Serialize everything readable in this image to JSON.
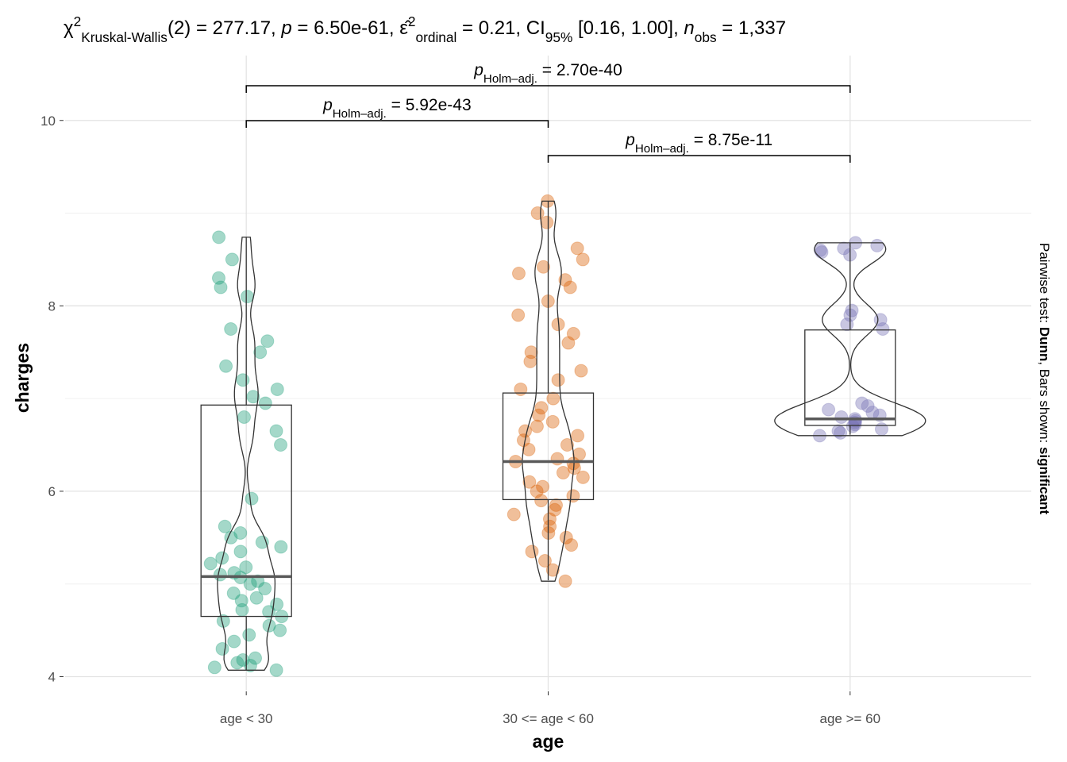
{
  "chart_data": {
    "type": "violin-box",
    "title_parts": [
      {
        "text": "χ"
      },
      {
        "text": "2",
        "style": "sup"
      },
      {
        "text": "Kruskal-Wallis",
        "style": "sub"
      },
      {
        "text": "(2) = 277.17, "
      },
      {
        "text": "p",
        "style": "italic"
      },
      {
        "text": " = 6.50e-61, "
      },
      {
        "text": "ε̂"
      },
      {
        "text": "2",
        "style": "sup"
      },
      {
        "text": "ordinal",
        "style": "sub"
      },
      {
        "text": " = 0.21, CI"
      },
      {
        "text": "95%",
        "style": "sub"
      },
      {
        "text": " [0.16, 1.00], "
      },
      {
        "text": "n",
        "style": "italic"
      },
      {
        "text": "obs",
        "style": "sub"
      },
      {
        "text": " = 1,337"
      }
    ],
    "caption_parts": [
      {
        "text": "Pairwise test: "
      },
      {
        "text": "Dunn",
        "style": "bold"
      },
      {
        "text": ", Bars shown: "
      },
      {
        "text": "significant",
        "style": "bold"
      }
    ],
    "x_label": "age",
    "y_label": "charges",
    "categories": [
      "age < 30",
      "30 <= age < 60",
      "age >= 60"
    ],
    "ylim": [
      3.85,
      10.7
    ],
    "yticks": [
      4,
      6,
      8,
      10
    ],
    "grid": true,
    "series": [
      {
        "name": "age < 30",
        "color": "#1B9E77",
        "values": [
          4.07,
          4.1,
          4.12,
          4.15,
          4.18,
          4.2,
          4.3,
          4.38,
          4.45,
          4.5,
          4.55,
          4.6,
          4.65,
          4.7,
          4.72,
          4.78,
          4.82,
          4.85,
          4.9,
          4.95,
          5.0,
          5.03,
          5.07,
          5.1,
          5.12,
          5.18,
          5.22,
          5.28,
          5.35,
          5.4,
          5.45,
          5.5,
          5.55,
          5.62,
          5.92,
          6.5,
          6.65,
          6.8,
          6.95,
          7.02,
          7.1,
          7.2,
          7.35,
          7.5,
          7.62,
          7.75,
          8.1,
          8.2,
          8.3,
          8.5,
          8.74
        ],
        "box": {
          "lower": 4.07,
          "q1": 4.65,
          "median": 5.08,
          "q3": 6.93,
          "upper": 8.74
        }
      },
      {
        "name": "30 <= age < 60",
        "color": "#D95F02",
        "values": [
          5.03,
          5.15,
          5.25,
          5.35,
          5.42,
          5.5,
          5.55,
          5.62,
          5.7,
          5.75,
          5.8,
          5.85,
          5.9,
          5.95,
          6.0,
          6.05,
          6.1,
          6.15,
          6.2,
          6.25,
          6.3,
          6.32,
          6.35,
          6.4,
          6.45,
          6.5,
          6.55,
          6.6,
          6.65,
          6.7,
          6.75,
          6.82,
          6.9,
          7.0,
          7.1,
          7.2,
          7.3,
          7.4,
          7.5,
          7.6,
          7.7,
          7.8,
          7.9,
          8.05,
          8.2,
          8.28,
          8.35,
          8.42,
          8.5,
          8.62,
          8.9,
          9.0,
          9.13
        ],
        "box": {
          "lower": 5.04,
          "q1": 5.91,
          "median": 6.32,
          "q3": 7.06,
          "upper": 9.13
        }
      },
      {
        "name": "age >= 60",
        "color": "#7570B3",
        "values": [
          6.6,
          6.63,
          6.65,
          6.67,
          6.7,
          6.72,
          6.74,
          6.76,
          6.78,
          6.8,
          6.82,
          6.85,
          6.88,
          6.92,
          6.95,
          7.75,
          7.8,
          7.85,
          7.9,
          7.95,
          8.55,
          8.58,
          8.6,
          8.62,
          8.65,
          8.68
        ],
        "box": {
          "lower": 6.61,
          "q1": 6.71,
          "median": 6.78,
          "q3": 7.74,
          "upper": 8.68
        }
      }
    ],
    "comparisons": [
      {
        "groups": [
          "age < 30",
          "30 <= age < 60"
        ],
        "label_parts": [
          {
            "text": "p",
            "style": "italic"
          },
          {
            "text": "Holm–adj.",
            "style": "sub"
          },
          {
            "text": " = 5.92e-43"
          }
        ]
      },
      {
        "groups": [
          "30 <= age < 60",
          "age >= 60"
        ],
        "label_parts": [
          {
            "text": "p",
            "style": "italic"
          },
          {
            "text": "Holm–adj.",
            "style": "sub"
          },
          {
            "text": " = 8.75e-11"
          }
        ]
      },
      {
        "groups": [
          "age < 30",
          "age >= 60"
        ],
        "label_parts": [
          {
            "text": "p",
            "style": "italic"
          },
          {
            "text": "Holm–adj.",
            "style": "sub"
          },
          {
            "text": " = 2.70e-40"
          }
        ]
      }
    ]
  }
}
